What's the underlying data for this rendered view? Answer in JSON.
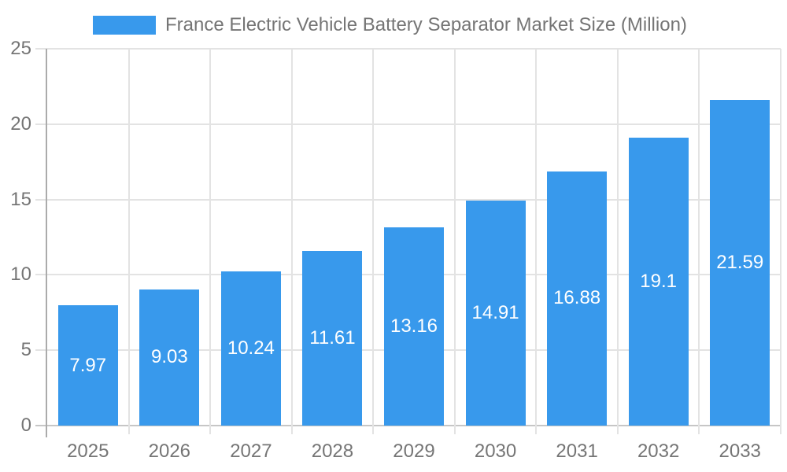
{
  "chart_data": {
    "type": "bar",
    "title": "France Electric Vehicle Battery Separator Market Size (Million)",
    "categories": [
      "2025",
      "2026",
      "2027",
      "2028",
      "2029",
      "2030",
      "2031",
      "2032",
      "2033"
    ],
    "values": [
      7.97,
      9.03,
      10.24,
      11.61,
      13.16,
      14.91,
      16.88,
      19.1,
      21.59
    ],
    "value_labels": [
      "7.97",
      "9.03",
      "10.24",
      "11.61",
      "13.16",
      "14.91",
      "16.88",
      "19.1",
      "21.59"
    ],
    "series_name": "France Electric Vehicle Battery Separator Market Size (Million)",
    "xlabel": "",
    "ylabel": "",
    "ylim": [
      0,
      25
    ],
    "yticks": [
      0,
      5,
      10,
      15,
      20,
      25
    ],
    "grid": true,
    "legend_position": "top",
    "colors": {
      "bar": "#3899EC",
      "gridline": "#E3E3E3",
      "x_axis_line": "#C6C6C6",
      "y_axis_line": "#ABABAB",
      "axis_text": "#757575",
      "value_label_text": "#FFFFFF",
      "background": "#FFFFFF"
    }
  }
}
